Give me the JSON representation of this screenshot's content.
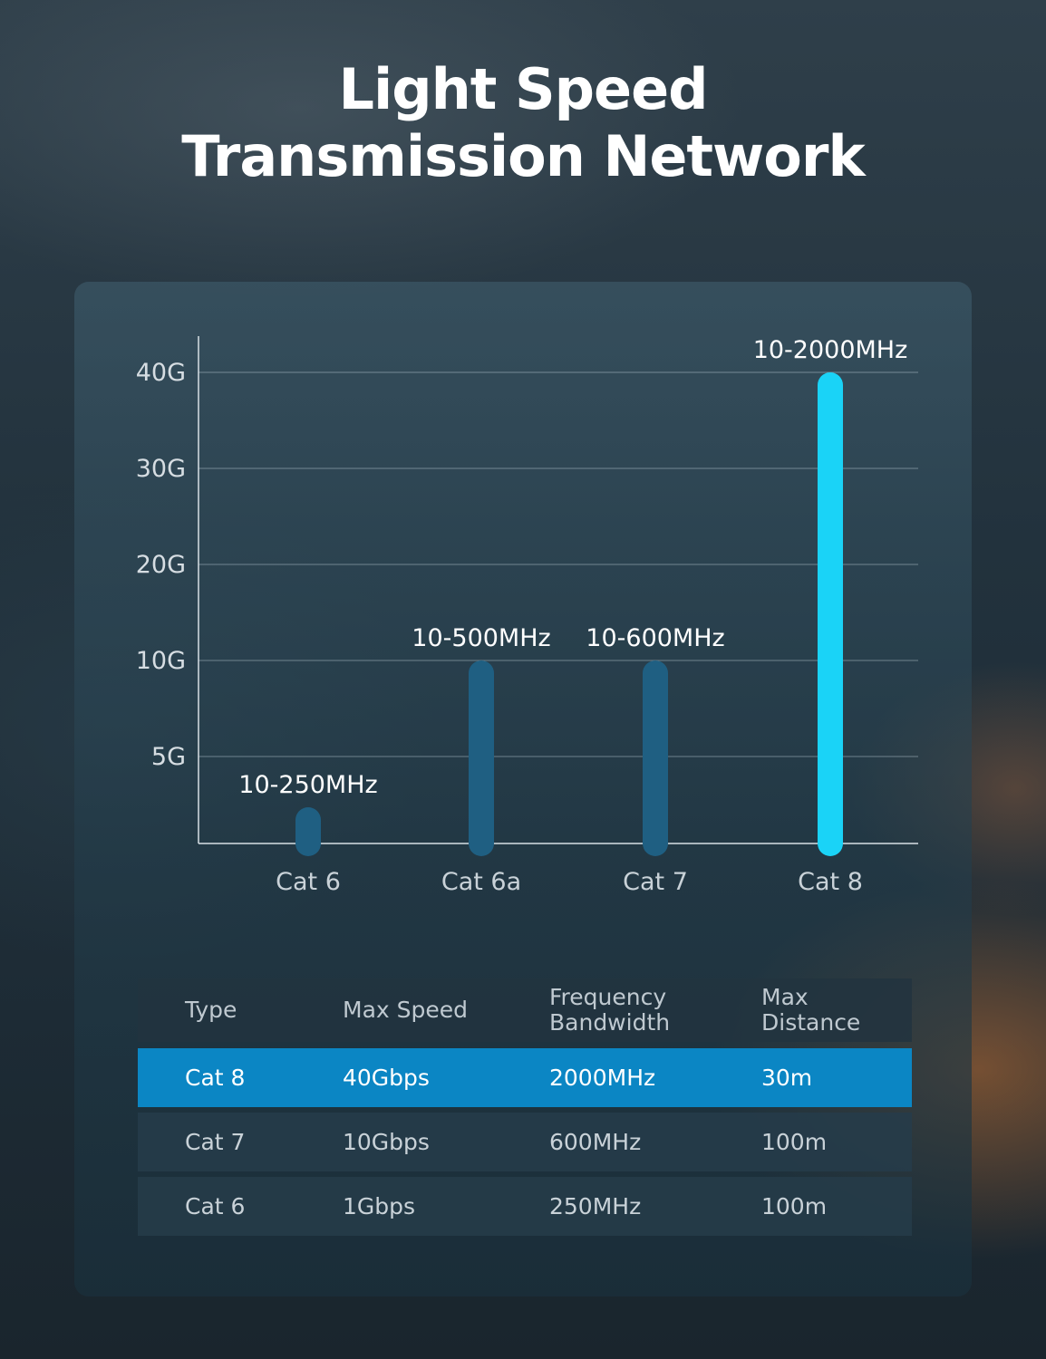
{
  "title": {
    "line1": "Light Speed",
    "line2": "Transmission Network"
  },
  "chart_data": {
    "type": "bar",
    "categories": [
      "Cat 6",
      "Cat 6a",
      "Cat 7",
      "Cat 8"
    ],
    "values": [
      1,
      10,
      10,
      40
    ],
    "data_labels": [
      "10-250MHz",
      "10-500MHz",
      "10-600MHz",
      "10-2000MHz"
    ],
    "y_ticks": [
      {
        "value": 5,
        "label": "5G"
      },
      {
        "value": 10,
        "label": "10G"
      },
      {
        "value": 20,
        "label": "20G"
      },
      {
        "value": 30,
        "label": "30G"
      },
      {
        "value": 40,
        "label": "40G"
      }
    ],
    "ylim": [
      0,
      40
    ],
    "grid": true,
    "colors": {
      "bar": "#1f5f82",
      "highlight_bar": "#1ad3f7"
    },
    "highlight_index": 3
  },
  "table": {
    "headers": [
      [
        "Type"
      ],
      [
        "Max Speed"
      ],
      [
        "Frequency",
        "Bandwidth"
      ],
      [
        "Max",
        "Distance"
      ]
    ],
    "rows": [
      [
        "Cat 8",
        "40Gbps",
        "2000MHz",
        "30m"
      ],
      [
        "Cat 7",
        "10Gbps",
        "600MHz",
        "100m"
      ],
      [
        "Cat 6",
        "1Gbps",
        "250MHz",
        "100m"
      ]
    ],
    "highlight_color": "#0b86c4"
  }
}
